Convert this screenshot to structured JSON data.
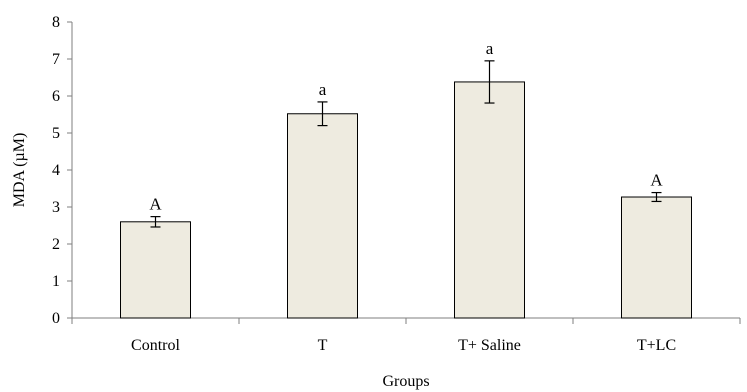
{
  "chart_data": {
    "type": "bar",
    "categories": [
      "Control",
      "T",
      "T+ Saline",
      "T+LC"
    ],
    "values": [
      2.6,
      5.52,
      6.38,
      3.27
    ],
    "errors": [
      0.14,
      0.32,
      0.57,
      0.12
    ],
    "annotations": [
      "A",
      "a",
      "a",
      "A"
    ],
    "xlabel": "Groups",
    "ylabel": "MDA (µM)",
    "ylim": [
      0,
      8
    ],
    "yticks": [
      0,
      1,
      2,
      3,
      4,
      5,
      6,
      7,
      8
    ],
    "grid": false,
    "bar_color": "#eeebe0",
    "bar_edge_color": "#000000"
  }
}
